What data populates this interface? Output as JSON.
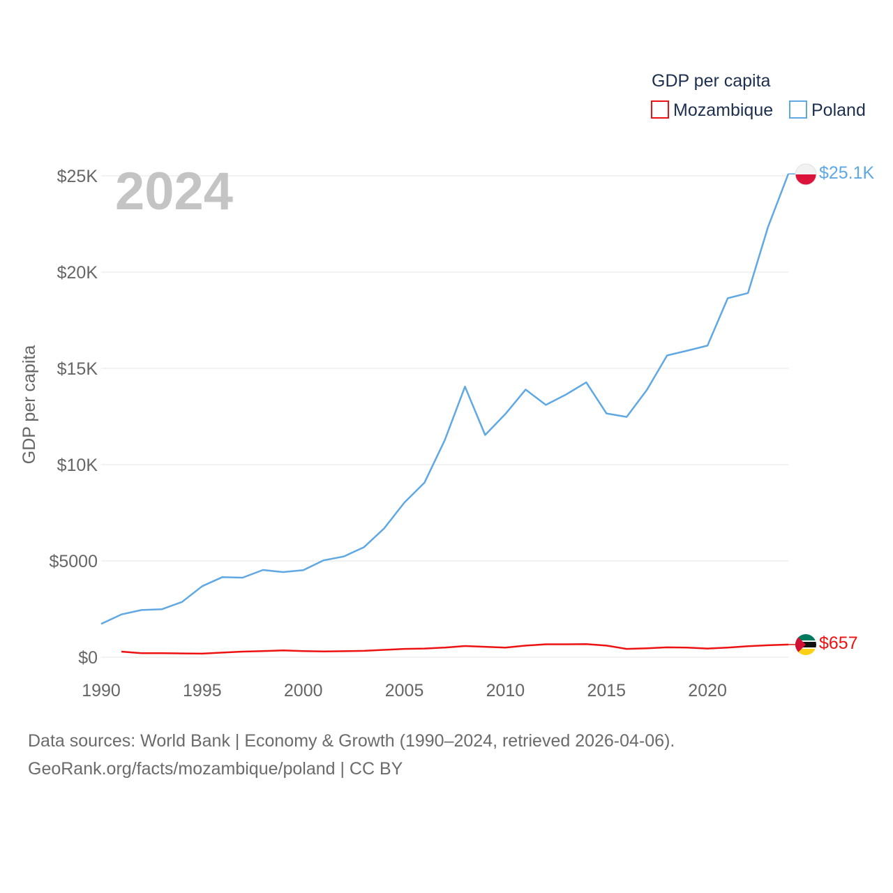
{
  "chart_data": {
    "type": "line",
    "title": "",
    "year_label": "2024",
    "xlabel": "",
    "ylabel": "GDP per capita",
    "xlim": [
      1990,
      2024
    ],
    "ylim": [
      0,
      25000
    ],
    "x_ticks": [
      1990,
      1995,
      2000,
      2005,
      2010,
      2015,
      2020
    ],
    "x_tick_labels": [
      "1990",
      "1995",
      "2000",
      "2005",
      "2010",
      "2015",
      "2020"
    ],
    "y_ticks": [
      0,
      5000,
      10000,
      15000,
      20000,
      25000
    ],
    "y_tick_labels": [
      "$0",
      "$5000",
      "$10K",
      "$15K",
      "$20K",
      "$25K"
    ],
    "legend": {
      "title": "GDP per capita",
      "position": "top-right",
      "items": [
        {
          "label": "Mozambique",
          "color": "#ee1111"
        },
        {
          "label": "Poland",
          "color": "#5fa8e3"
        }
      ]
    },
    "series": [
      {
        "name": "Poland",
        "color": "#5fa8e3",
        "end_label": "$25.1K",
        "flag_icon": "poland-flag-icon",
        "x": [
          1990,
          1991,
          1992,
          1993,
          1994,
          1995,
          1996,
          1997,
          1998,
          1999,
          2000,
          2001,
          2002,
          2003,
          2004,
          2005,
          2006,
          2007,
          2008,
          2009,
          2010,
          2011,
          2012,
          2013,
          2014,
          2015,
          2016,
          2017,
          2018,
          2019,
          2020,
          2021,
          2022,
          2023,
          2024
        ],
        "values": [
          1730,
          2220,
          2450,
          2490,
          2870,
          3690,
          4160,
          4130,
          4530,
          4420,
          4520,
          5030,
          5230,
          5710,
          6690,
          8030,
          9070,
          11270,
          14050,
          11540,
          12630,
          13900,
          13100,
          13640,
          14270,
          12660,
          12480,
          13880,
          15670,
          15920,
          16180,
          18640,
          18910,
          22360,
          25100
        ]
      },
      {
        "name": "Mozambique",
        "color": "#ee1111",
        "end_label": "$657",
        "flag_icon": "mozambique-flag-icon",
        "x": [
          1991,
          1992,
          1993,
          1994,
          1995,
          1996,
          1997,
          1998,
          1999,
          2000,
          2001,
          2002,
          2003,
          2004,
          2005,
          2006,
          2007,
          2008,
          2009,
          2010,
          2011,
          2012,
          2013,
          2014,
          2015,
          2016,
          2017,
          2018,
          2019,
          2020,
          2021,
          2022,
          2023,
          2024
        ],
        "values": [
          290,
          210,
          210,
          195,
          185,
          240,
          290,
          320,
          350,
          320,
          300,
          310,
          330,
          380,
          430,
          450,
          500,
          580,
          540,
          500,
          600,
          670,
          670,
          680,
          600,
          430,
          460,
          510,
          500,
          450,
          500,
          570,
          620,
          657
        ]
      }
    ]
  },
  "footer": {
    "sources": "Data sources: World Bank | Economy & Growth (1990–2024, retrieved 2026-04-06).",
    "credit": "GeoRank.org/facts/mozambique/poland | CC BY"
  }
}
